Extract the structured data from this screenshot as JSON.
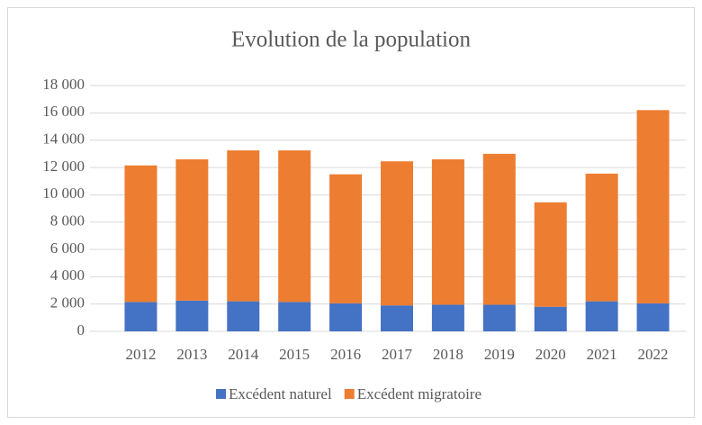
{
  "chart_data": {
    "type": "bar",
    "stacked": true,
    "title": "Evolution de la population",
    "categories": [
      "2012",
      "2013",
      "2014",
      "2015",
      "2016",
      "2017",
      "2018",
      "2019",
      "2020",
      "2021",
      "2022"
    ],
    "series": [
      {
        "name": "Excédent naturel",
        "color": "#4472c4",
        "values": [
          2150,
          2250,
          2200,
          2150,
          2050,
          1900,
          1950,
          1950,
          1800,
          2200,
          2050
        ]
      },
      {
        "name": "Excédent migratoire",
        "color": "#ed7d31",
        "values": [
          10000,
          10350,
          11050,
          11100,
          9450,
          10550,
          10650,
          11050,
          7650,
          9350,
          14150
        ]
      }
    ],
    "ylim": [
      0,
      18000
    ],
    "yticks": [
      0,
      {
        "value": 2000,
        "label": "2 000"
      },
      {
        "value": 4000,
        "label": "4 000"
      },
      {
        "value": 6000,
        "label": "6 000"
      },
      {
        "value": 8000,
        "label": "8 000"
      },
      {
        "value": 10000,
        "label": "10 000"
      },
      {
        "value": 12000,
        "label": "12 000"
      },
      {
        "value": 14000,
        "label": "14 000"
      },
      {
        "value": 16000,
        "label": "16 000"
      },
      {
        "value": 18000,
        "label": "18 000"
      }
    ],
    "grid": true,
    "legend": "bottom"
  }
}
